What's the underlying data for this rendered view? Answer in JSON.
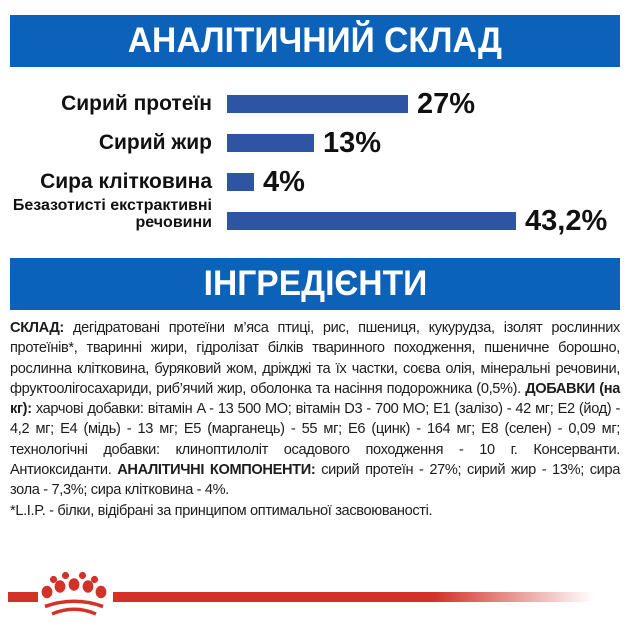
{
  "header": {
    "analytical_title": "АНАЛІТИЧНИЙ СКЛАД",
    "ingredients_title": "ІНГРЕДІЄНТИ"
  },
  "colors": {
    "banner_blue": "#0b62b8",
    "bar_blue": "#2d55a4",
    "brand_red": "#d23228",
    "text_dark": "#1d1d1d"
  },
  "chart_data": {
    "type": "bar",
    "orientation": "horizontal",
    "title": "АНАЛІТИЧНИЙ СКЛАД",
    "categories": [
      "Сирий протеїн",
      "Сирий жир",
      "Сира клітковина",
      "Безазотисті екстрактивні речовини"
    ],
    "values": [
      27,
      13,
      4,
      43.2
    ],
    "value_labels": [
      "27%",
      "13%",
      "4%",
      "43,2%"
    ],
    "xlim": [
      0,
      45
    ],
    "bar_color": "#2d55a4",
    "grid": false,
    "legend": false
  },
  "ingredients": {
    "segments": [
      {
        "bold": true,
        "text": "СКЛАД: "
      },
      {
        "bold": false,
        "text": "дегідратовані протеїни м’яса птиці, рис, пшениця, кукурудза, ізолят рослинних протеїнів*, тваринні жири, гідролізат білків тваринного походження, пшеничне борошно, рослинна клітковина, буряковий жом, дріжджі та їх частки, соєва олія, мінеральні речовини, фруктоолігосахариди, риб’ячий жир, оболонка та насіння подорожника (0,5%). "
      },
      {
        "bold": true,
        "text": "ДОБАВКИ (на кг): "
      },
      {
        "bold": false,
        "text": "харчові добавки: вітамін A - 13 500 МО; вітамін D3 - 700 МО; E1 (залізо) - 42 мг; E2 (йод) - 4,2 мг; E4 (мідь) - 13 мг; E5 (марганець) - 55 мг; E6 (цинк) - 164 мг; E8 (селен) - 0,09 мг; технологічні добавки: клиноптилоліт осадового походження - 10 г. Консерванти. Антиоксиданти. "
      },
      {
        "bold": true,
        "text": "АНАЛІТИЧНІ КОМПОНЕНТИ: "
      },
      {
        "bold": false,
        "text": "сирий протеїн - 27%; сирий жир - 13%; сира зола - 7,3%; сира клітковина - 4%."
      }
    ],
    "footnote": "*L.I.P. - білки, відібрані за принципом оптимальної засвоюваності."
  },
  "footer": {
    "logo_icon": "royal-canin-crown"
  }
}
